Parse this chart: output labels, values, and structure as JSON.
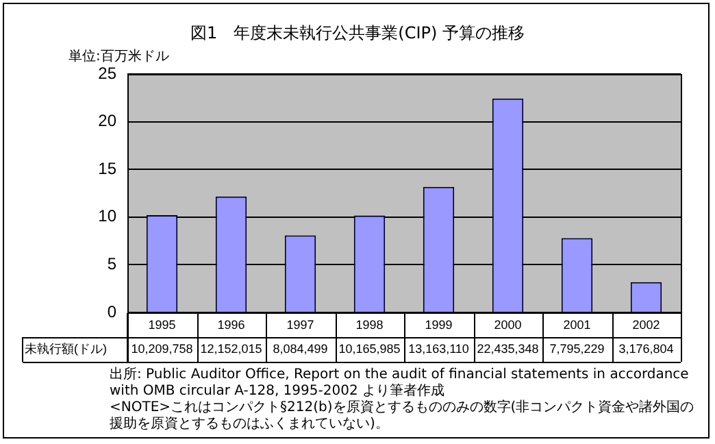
{
  "chart_data": {
    "type": "bar",
    "title": "図1　年度末未執行公共事業(CIP) 予算の推移",
    "ylabel": "単位:百万米ドル",
    "categories": [
      "1995",
      "1996",
      "1997",
      "1998",
      "1999",
      "2000",
      "2001",
      "2002"
    ],
    "series": [
      {
        "name": "未執行額(ドル)",
        "color": "#9999ff",
        "values": [
          10.21,
          12.15,
          8.08,
          10.17,
          13.16,
          22.44,
          7.8,
          3.18
        ]
      }
    ],
    "ylim": [
      0,
      25
    ],
    "yticks": [
      0,
      5,
      10,
      15,
      20,
      25
    ],
    "grid": "y",
    "legend": false,
    "annotations": [
      "10,209,758",
      "12,152,015",
      "8,084,499",
      "10,165,985",
      "13,163,110",
      "22,435,348",
      "7,795,229",
      "3,176,804",
      "出所:  Public Auditor Office, Report on the audit of financial statements in accordance with OMB circular A-128, 1995-2002 より筆者作成",
      "<NOTE>これはコンパクト§212(b)を原資とするもののみの数字(非コンパクト資金や諸外国の援助を原資とするものはふくまれていない)。"
    ]
  }
}
